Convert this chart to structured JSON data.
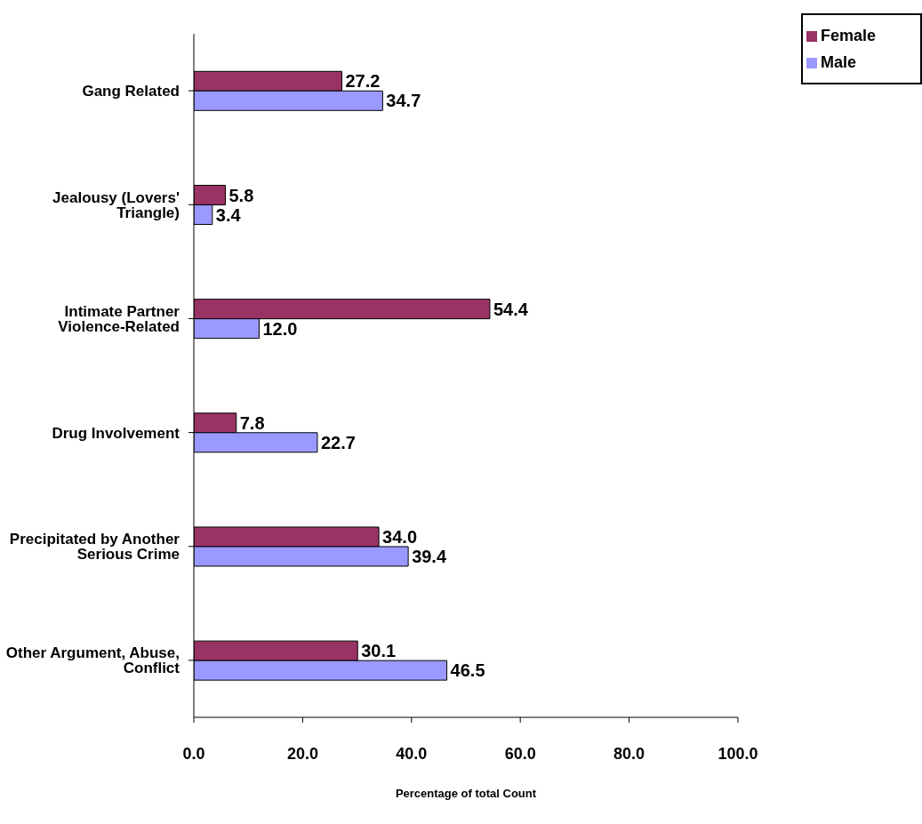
{
  "chart_data": {
    "type": "bar",
    "orientation": "horizontal",
    "xlabel": "Percentage of total Count",
    "categories": [
      "Gang Related",
      "Jealousy (Lovers' Triangle)",
      "Intimate Partner Violence-Related",
      "Drug Involvement",
      "Precipitated by Another Serious Crime",
      "Other Argument, Abuse, Conflict"
    ],
    "series": [
      {
        "name": "Female",
        "color": "#993366",
        "values": [
          27.2,
          5.8,
          54.4,
          7.8,
          34.0,
          30.1
        ],
        "value_labels": [
          "27.2",
          "5.8",
          "54.4",
          "7.8",
          "34.0",
          "30.1"
        ]
      },
      {
        "name": "Male",
        "color": "#9999ff",
        "values": [
          34.7,
          3.4,
          12.0,
          22.7,
          39.4,
          46.5
        ],
        "value_labels": [
          "34.7",
          "3.4",
          "12.0",
          "22.7",
          "39.4",
          "46.5"
        ]
      }
    ],
    "xlim": [
      0,
      100
    ],
    "xticks": [
      {
        "value": 0,
        "label": "0.0"
      },
      {
        "value": 20,
        "label": "20.0"
      },
      {
        "value": 40,
        "label": "40.0"
      },
      {
        "value": 60,
        "label": "60.0"
      },
      {
        "value": 80,
        "label": "80.0"
      },
      {
        "value": 100,
        "label": "100.0"
      }
    ],
    "grid": false,
    "legend": "top right"
  }
}
